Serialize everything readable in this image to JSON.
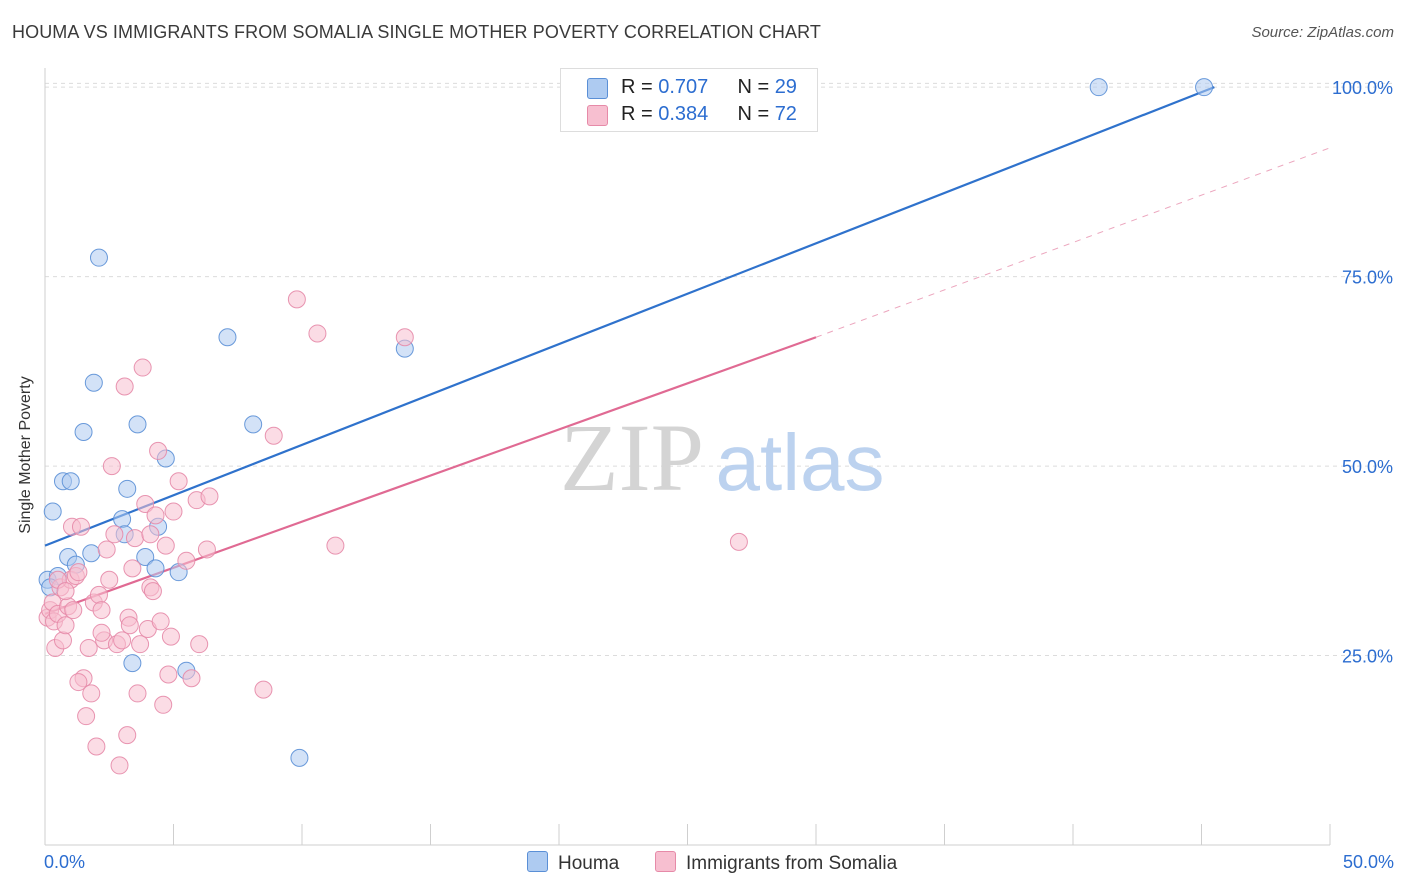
{
  "title": "HOUMA VS IMMIGRANTS FROM SOMALIA SINGLE MOTHER POVERTY CORRELATION CHART",
  "source": "Source: ZipAtlas.com",
  "watermark": {
    "zip": "ZIP",
    "atlas": "atlas"
  },
  "colors": {
    "blue_fill": "#aecbf1",
    "blue_stroke": "#5a8fd6",
    "blue_line": "#2f72cc",
    "pink_fill": "#f7bfd0",
    "pink_stroke": "#e68aa8",
    "pink_line": "#e06a93",
    "grid": "#dcdcdc",
    "axis_text": "#2c6dd0"
  },
  "legend": {
    "houma": {
      "r_label": "R = ",
      "r_value": "0.707",
      "n_label": "N = ",
      "n_value": "29"
    },
    "somalia": {
      "r_label": "R = ",
      "r_value": "0.384",
      "n_label": "N = ",
      "n_value": "72"
    }
  },
  "chart_data": {
    "type": "scatter",
    "title": "HOUMA VS IMMIGRANTS FROM SOMALIA SINGLE MOTHER POVERTY CORRELATION CHART",
    "xlabel": "",
    "ylabel": "Single Mother Poverty",
    "xlim": [
      0,
      50
    ],
    "ylim": [
      0,
      102
    ],
    "x_tick_labels": [
      "0.0%",
      "50.0%"
    ],
    "y_tick_values": [
      25,
      50,
      75,
      100
    ],
    "y_tick_labels": [
      "25.0%",
      "50.0%",
      "75.0%",
      "100.0%"
    ],
    "grid": true,
    "series": [
      {
        "name": "Houma",
        "color": "blue",
        "trend": {
          "x": [
            0,
            45.5
          ],
          "y": [
            39.5,
            100
          ],
          "dashed_to": null
        },
        "points": [
          [
            0.1,
            35
          ],
          [
            0.3,
            44
          ],
          [
            0.5,
            35.5
          ],
          [
            0.7,
            48
          ],
          [
            0.9,
            38
          ],
          [
            1.0,
            48
          ],
          [
            1.2,
            37
          ],
          [
            1.5,
            54.5
          ],
          [
            1.8,
            38.5
          ],
          [
            1.9,
            61
          ],
          [
            2.1,
            77.5
          ],
          [
            3.0,
            43
          ],
          [
            3.2,
            47
          ],
          [
            3.4,
            24
          ],
          [
            3.6,
            55.5
          ],
          [
            3.9,
            38
          ],
          [
            4.3,
            36.5
          ],
          [
            4.4,
            42
          ],
          [
            4.7,
            51
          ],
          [
            5.2,
            36
          ],
          [
            5.5,
            23
          ],
          [
            7.1,
            67
          ],
          [
            8.1,
            55.5
          ],
          [
            9.9,
            11.5
          ],
          [
            14.0,
            65.5
          ],
          [
            41.0,
            100
          ],
          [
            45.1,
            100
          ],
          [
            3.1,
            41
          ],
          [
            0.2,
            34
          ]
        ]
      },
      {
        "name": "Immigrants from Somalia",
        "color": "pink",
        "trend": {
          "x": [
            0,
            30
          ],
          "y": [
            30.5,
            67
          ],
          "dashed_to": [
            50,
            92
          ]
        },
        "points": [
          [
            0.1,
            30
          ],
          [
            0.2,
            31
          ],
          [
            0.3,
            32
          ],
          [
            0.35,
            29.5
          ],
          [
            0.4,
            26
          ],
          [
            0.5,
            30.5
          ],
          [
            0.6,
            34
          ],
          [
            0.7,
            27
          ],
          [
            0.8,
            29
          ],
          [
            0.9,
            31.5
          ],
          [
            1.0,
            35
          ],
          [
            1.05,
            42
          ],
          [
            1.1,
            31
          ],
          [
            1.2,
            35.5
          ],
          [
            1.3,
            36
          ],
          [
            1.4,
            42
          ],
          [
            1.5,
            22
          ],
          [
            1.6,
            17
          ],
          [
            1.7,
            26
          ],
          [
            1.8,
            20
          ],
          [
            1.9,
            32
          ],
          [
            2.0,
            13
          ],
          [
            2.1,
            33
          ],
          [
            2.2,
            31
          ],
          [
            2.3,
            27
          ],
          [
            2.4,
            39
          ],
          [
            2.5,
            35
          ],
          [
            2.6,
            50
          ],
          [
            2.7,
            41
          ],
          [
            2.8,
            26.5
          ],
          [
            2.9,
            10.5
          ],
          [
            3.0,
            27
          ],
          [
            3.1,
            60.5
          ],
          [
            3.2,
            14.5
          ],
          [
            3.25,
            30
          ],
          [
            3.3,
            29
          ],
          [
            3.4,
            36.5
          ],
          [
            3.5,
            40.5
          ],
          [
            3.6,
            20
          ],
          [
            3.7,
            26.5
          ],
          [
            3.8,
            63
          ],
          [
            3.9,
            45
          ],
          [
            4.0,
            28.5
          ],
          [
            4.1,
            34
          ],
          [
            4.2,
            33.5
          ],
          [
            4.3,
            43.5
          ],
          [
            4.4,
            52
          ],
          [
            4.5,
            29.5
          ],
          [
            4.6,
            18.5
          ],
          [
            4.7,
            39.5
          ],
          [
            4.8,
            22.5
          ],
          [
            4.9,
            27.5
          ],
          [
            5.0,
            44
          ],
          [
            5.2,
            48
          ],
          [
            5.5,
            37.5
          ],
          [
            5.7,
            22
          ],
          [
            5.9,
            45.5
          ],
          [
            6.0,
            26.5
          ],
          [
            6.3,
            39
          ],
          [
            6.4,
            46
          ],
          [
            8.5,
            20.5
          ],
          [
            8.9,
            54
          ],
          [
            9.8,
            72
          ],
          [
            10.6,
            67.5
          ],
          [
            11.3,
            39.5
          ],
          [
            14.0,
            67
          ],
          [
            27.0,
            40
          ],
          [
            1.3,
            21.5
          ],
          [
            0.5,
            35
          ],
          [
            2.2,
            28
          ],
          [
            4.1,
            41
          ],
          [
            0.8,
            33.5
          ]
        ]
      }
    ]
  },
  "bottom_legend": {
    "houma": "Houma",
    "somalia": "Immigrants from Somalia"
  }
}
